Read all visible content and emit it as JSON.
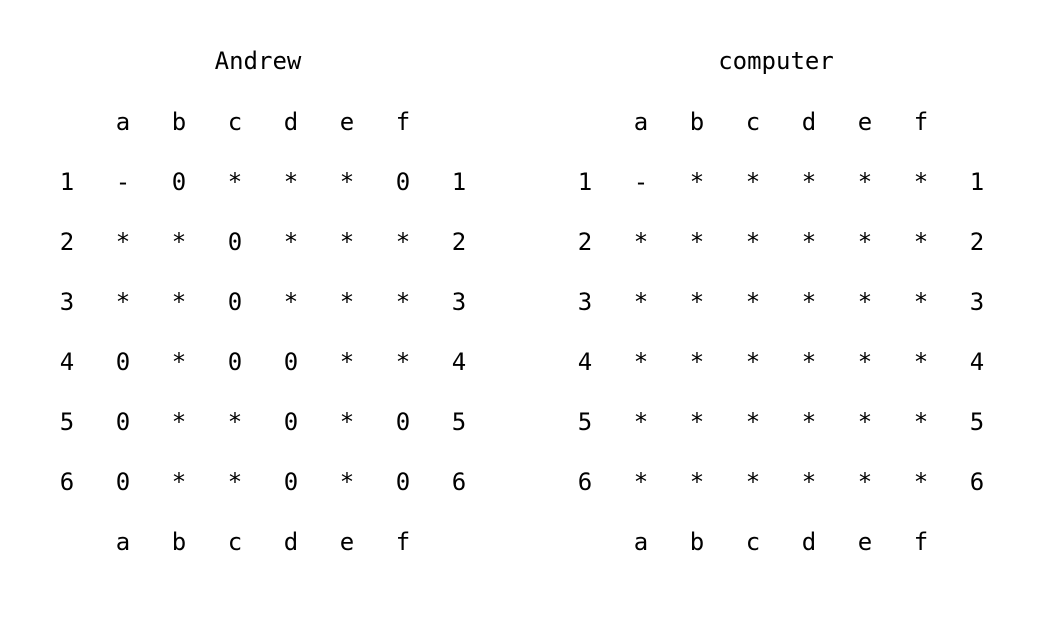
{
  "columns": [
    "a",
    "b",
    "c",
    "d",
    "e",
    "f"
  ],
  "rows": [
    "1",
    "2",
    "3",
    "4",
    "5",
    "6"
  ],
  "boards": [
    {
      "title": "Andrew",
      "grid": [
        [
          "-",
          "0",
          "*",
          "*",
          "*",
          "0"
        ],
        [
          "*",
          "*",
          "0",
          "*",
          "*",
          "*"
        ],
        [
          "*",
          "*",
          "0",
          "*",
          "*",
          "*"
        ],
        [
          "0",
          "*",
          "0",
          "0",
          "*",
          "*"
        ],
        [
          "0",
          "*",
          "*",
          "0",
          "*",
          "0"
        ],
        [
          "0",
          "*",
          "*",
          "0",
          "*",
          "0"
        ]
      ]
    },
    {
      "title": "computer",
      "grid": [
        [
          "-",
          "*",
          "*",
          "*",
          "*",
          "*"
        ],
        [
          "*",
          "*",
          "*",
          "*",
          "*",
          "*"
        ],
        [
          "*",
          "*",
          "*",
          "*",
          "*",
          "*"
        ],
        [
          "*",
          "*",
          "*",
          "*",
          "*",
          "*"
        ],
        [
          "*",
          "*",
          "*",
          "*",
          "*",
          "*"
        ],
        [
          "*",
          "*",
          "*",
          "*",
          "*",
          "*"
        ]
      ]
    }
  ]
}
